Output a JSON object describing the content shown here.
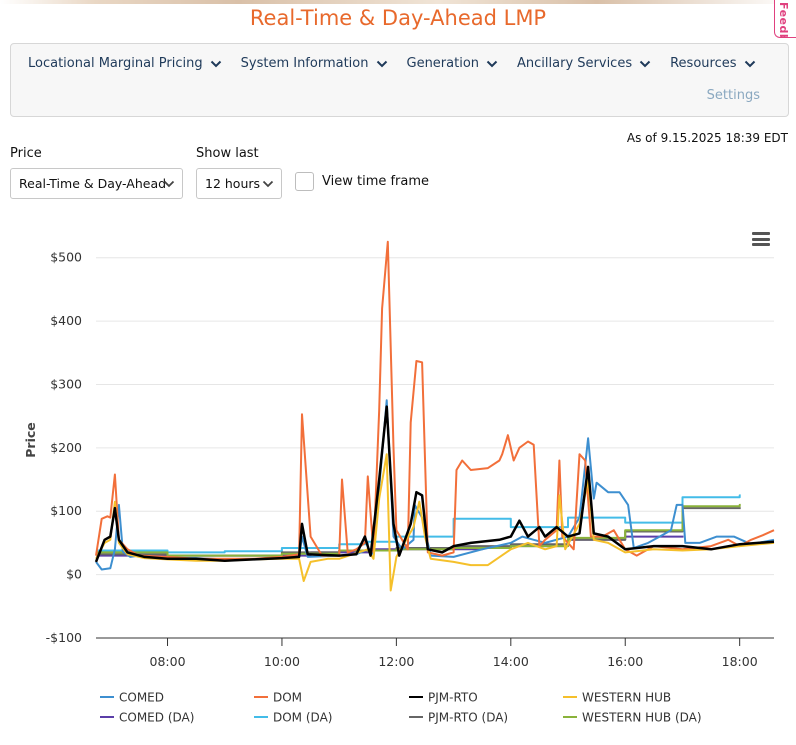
{
  "title": "Real-Time & Day-Ahead LMP",
  "feedback_label": "Feedback",
  "nav": {
    "items": [
      {
        "label": "Locational Marginal Pricing"
      },
      {
        "label": "System Information"
      },
      {
        "label": "Generation"
      },
      {
        "label": "Ancillary Services"
      },
      {
        "label": "Resources"
      }
    ],
    "settings_label": "Settings"
  },
  "as_of": "As of 9.15.2025 18:39 EDT",
  "controls": {
    "price_label": "Price",
    "price_value": "Real-Time & Day-Ahead",
    "show_last_label": "Show last",
    "show_last_value": "12 hours",
    "time_frame_label": "View time frame"
  },
  "colors": {
    "accent": "#e8692c",
    "COMED": "#3d8fd0",
    "DOM": "#f26f3a",
    "PJM-RTO": "#000000",
    "WESTERN HUB": "#f5c02b",
    "COMED (DA)": "#5b3ea8",
    "DOM (DA)": "#43bce8",
    "PJM-RTO (DA)": "#666666",
    "WESTERN HUB (DA)": "#8ab23a"
  },
  "chart_data": {
    "type": "line",
    "title": "",
    "xlabel": "",
    "ylabel": "Price",
    "x_range_hours": [
      6.75,
      18.6
    ],
    "ylim": [
      -100,
      550
    ],
    "y_ticks": [
      -100,
      0,
      100,
      200,
      300,
      400,
      500
    ],
    "y_tick_labels": [
      "-$100",
      "$0",
      "$100",
      "$200",
      "$300",
      "$400",
      "$500"
    ],
    "x_ticks": [
      8,
      10,
      12,
      14,
      16,
      18
    ],
    "x_tick_labels": [
      "08:00",
      "10:00",
      "12:00",
      "14:00",
      "16:00",
      "18:00"
    ],
    "grid": true,
    "legend_position": "bottom",
    "series": [
      {
        "name": "COMED",
        "color": "#3d8fd0",
        "width": 2,
        "points": [
          [
            6.75,
            20
          ],
          [
            6.85,
            8
          ],
          [
            7.0,
            10
          ],
          [
            7.08,
            40
          ],
          [
            7.15,
            110
          ],
          [
            7.22,
            36
          ],
          [
            7.35,
            28
          ],
          [
            7.5,
            30
          ],
          [
            7.7,
            26
          ],
          [
            8.0,
            26
          ],
          [
            8.5,
            26
          ],
          [
            9.0,
            24
          ],
          [
            9.5,
            24
          ],
          [
            10.0,
            26
          ],
          [
            10.3,
            28
          ],
          [
            10.35,
            60
          ],
          [
            10.45,
            28
          ],
          [
            11.0,
            30
          ],
          [
            11.3,
            32
          ],
          [
            11.5,
            40
          ],
          [
            11.6,
            32
          ],
          [
            11.83,
            275
          ],
          [
            11.95,
            60
          ],
          [
            12.1,
            40
          ],
          [
            12.3,
            55
          ],
          [
            12.32,
            110
          ],
          [
            12.45,
            90
          ],
          [
            12.6,
            30
          ],
          [
            13.0,
            28
          ],
          [
            13.5,
            40
          ],
          [
            14.0,
            50
          ],
          [
            14.2,
            60
          ],
          [
            14.4,
            55
          ],
          [
            14.6,
            50
          ],
          [
            15.0,
            60
          ],
          [
            15.2,
            90
          ],
          [
            15.35,
            215
          ],
          [
            15.45,
            120
          ],
          [
            15.5,
            145
          ],
          [
            15.7,
            130
          ],
          [
            15.9,
            130
          ],
          [
            16.05,
            110
          ],
          [
            16.15,
            42
          ],
          [
            16.4,
            50
          ],
          [
            16.6,
            60
          ],
          [
            16.8,
            70
          ],
          [
            16.9,
            110
          ],
          [
            17.0,
            110
          ],
          [
            17.05,
            50
          ],
          [
            17.3,
            50
          ],
          [
            17.6,
            60
          ],
          [
            17.9,
            60
          ],
          [
            18.2,
            48
          ],
          [
            18.6,
            55
          ]
        ]
      },
      {
        "name": "DOM",
        "color": "#f26f3a",
        "width": 2,
        "points": [
          [
            6.75,
            30
          ],
          [
            6.85,
            88
          ],
          [
            6.95,
            92
          ],
          [
            7.0,
            90
          ],
          [
            7.08,
            158
          ],
          [
            7.15,
            55
          ],
          [
            7.3,
            40
          ],
          [
            7.5,
            30
          ],
          [
            8.0,
            28
          ],
          [
            8.5,
            25
          ],
          [
            9.0,
            25
          ],
          [
            9.5,
            25
          ],
          [
            10.0,
            28
          ],
          [
            10.3,
            32
          ],
          [
            10.35,
            253
          ],
          [
            10.5,
            60
          ],
          [
            10.7,
            30
          ],
          [
            11.0,
            30
          ],
          [
            11.05,
            150
          ],
          [
            11.15,
            35
          ],
          [
            11.3,
            40
          ],
          [
            11.45,
            50
          ],
          [
            11.5,
            155
          ],
          [
            11.6,
            35
          ],
          [
            11.7,
            260
          ],
          [
            11.75,
            420
          ],
          [
            11.85,
            525
          ],
          [
            11.95,
            200
          ],
          [
            12.0,
            70
          ],
          [
            12.2,
            40
          ],
          [
            12.25,
            240
          ],
          [
            12.35,
            337
          ],
          [
            12.45,
            335
          ],
          [
            12.55,
            35
          ],
          [
            12.8,
            30
          ],
          [
            13.0,
            35
          ],
          [
            13.05,
            165
          ],
          [
            13.15,
            180
          ],
          [
            13.3,
            165
          ],
          [
            13.6,
            168
          ],
          [
            13.8,
            180
          ],
          [
            13.85,
            190
          ],
          [
            13.95,
            220
          ],
          [
            14.05,
            180
          ],
          [
            14.15,
            200
          ],
          [
            14.3,
            210
          ],
          [
            14.4,
            205
          ],
          [
            14.5,
            45
          ],
          [
            14.6,
            55
          ],
          [
            14.8,
            70
          ],
          [
            14.85,
            180
          ],
          [
            14.9,
            60
          ],
          [
            15.0,
            50
          ],
          [
            15.1,
            40
          ],
          [
            15.2,
            190
          ],
          [
            15.3,
            180
          ],
          [
            15.4,
            60
          ],
          [
            15.6,
            60
          ],
          [
            15.8,
            70
          ],
          [
            16.0,
            40
          ],
          [
            16.2,
            30
          ],
          [
            16.5,
            45
          ],
          [
            17.0,
            40
          ],
          [
            17.5,
            45
          ],
          [
            17.8,
            55
          ],
          [
            18.0,
            45
          ],
          [
            18.2,
            55
          ],
          [
            18.4,
            62
          ],
          [
            18.6,
            70
          ]
        ]
      },
      {
        "name": "PJM-RTO",
        "color": "#000000",
        "width": 2.5,
        "points": [
          [
            6.75,
            20
          ],
          [
            6.9,
            55
          ],
          [
            7.0,
            60
          ],
          [
            7.08,
            105
          ],
          [
            7.15,
            55
          ],
          [
            7.3,
            35
          ],
          [
            7.6,
            28
          ],
          [
            8.0,
            25
          ],
          [
            8.5,
            25
          ],
          [
            9.0,
            22
          ],
          [
            9.5,
            24
          ],
          [
            10.0,
            26
          ],
          [
            10.3,
            28
          ],
          [
            10.35,
            80
          ],
          [
            10.45,
            32
          ],
          [
            11.0,
            30
          ],
          [
            11.3,
            32
          ],
          [
            11.45,
            60
          ],
          [
            11.55,
            30
          ],
          [
            11.7,
            150
          ],
          [
            11.83,
            265
          ],
          [
            11.95,
            80
          ],
          [
            12.05,
            30
          ],
          [
            12.25,
            80
          ],
          [
            12.35,
            130
          ],
          [
            12.45,
            125
          ],
          [
            12.55,
            40
          ],
          [
            12.8,
            35
          ],
          [
            13.0,
            45
          ],
          [
            13.3,
            50
          ],
          [
            13.8,
            55
          ],
          [
            14.0,
            60
          ],
          [
            14.15,
            85
          ],
          [
            14.3,
            60
          ],
          [
            14.5,
            75
          ],
          [
            14.6,
            60
          ],
          [
            14.8,
            75
          ],
          [
            15.0,
            60
          ],
          [
            15.2,
            65
          ],
          [
            15.35,
            170
          ],
          [
            15.45,
            65
          ],
          [
            15.7,
            60
          ],
          [
            16.0,
            40
          ],
          [
            16.5,
            45
          ],
          [
            17.0,
            45
          ],
          [
            17.5,
            40
          ],
          [
            18.0,
            48
          ],
          [
            18.6,
            52
          ]
        ]
      },
      {
        "name": "WESTERN HUB",
        "color": "#f5c02b",
        "width": 2,
        "points": [
          [
            6.75,
            25
          ],
          [
            6.9,
            50
          ],
          [
            7.0,
            55
          ],
          [
            7.08,
            115
          ],
          [
            7.15,
            50
          ],
          [
            7.3,
            32
          ],
          [
            7.6,
            26
          ],
          [
            8.0,
            24
          ],
          [
            8.5,
            22
          ],
          [
            9.0,
            22
          ],
          [
            9.5,
            24
          ],
          [
            10.0,
            25
          ],
          [
            10.3,
            25
          ],
          [
            10.38,
            -10
          ],
          [
            10.5,
            20
          ],
          [
            10.8,
            25
          ],
          [
            11.0,
            25
          ],
          [
            11.5,
            40
          ],
          [
            11.6,
            25
          ],
          [
            11.7,
            120
          ],
          [
            11.83,
            190
          ],
          [
            11.9,
            -25
          ],
          [
            12.0,
            28
          ],
          [
            12.3,
            75
          ],
          [
            12.4,
            115
          ],
          [
            12.5,
            60
          ],
          [
            12.6,
            25
          ],
          [
            13.0,
            20
          ],
          [
            13.3,
            15
          ],
          [
            13.6,
            15
          ],
          [
            14.0,
            40
          ],
          [
            14.3,
            50
          ],
          [
            14.6,
            40
          ],
          [
            14.8,
            45
          ],
          [
            14.85,
            125
          ],
          [
            14.95,
            40
          ],
          [
            15.2,
            80
          ],
          [
            15.35,
            150
          ],
          [
            15.45,
            55
          ],
          [
            15.7,
            50
          ],
          [
            16.0,
            35
          ],
          [
            16.5,
            40
          ],
          [
            17.0,
            38
          ],
          [
            17.5,
            40
          ],
          [
            18.0,
            45
          ],
          [
            18.6,
            50
          ]
        ]
      },
      {
        "name": "COMED (DA)",
        "color": "#5b3ea8",
        "width": 2,
        "step": true,
        "points": [
          [
            6.75,
            30
          ],
          [
            7.0,
            30
          ],
          [
            8.0,
            30
          ],
          [
            8.5,
            30
          ],
          [
            9.0,
            30
          ],
          [
            9.5,
            30
          ],
          [
            10.0,
            30
          ],
          [
            10.5,
            35
          ],
          [
            11.0,
            35
          ],
          [
            11.5,
            40
          ],
          [
            12.0,
            40
          ],
          [
            13.0,
            40
          ],
          [
            13.5,
            42
          ],
          [
            14.0,
            45
          ],
          [
            15.0,
            55
          ],
          [
            16.0,
            60
          ],
          [
            17.0,
            60
          ]
        ]
      },
      {
        "name": "DOM (DA)",
        "color": "#43bce8",
        "width": 2,
        "step": true,
        "points": [
          [
            6.75,
            38
          ],
          [
            7.0,
            38
          ],
          [
            8.0,
            35
          ],
          [
            9.0,
            37
          ],
          [
            10.0,
            42
          ],
          [
            11.0,
            48
          ],
          [
            11.5,
            52
          ],
          [
            12.0,
            60
          ],
          [
            13.0,
            88
          ],
          [
            14.0,
            75
          ],
          [
            15.0,
            90
          ],
          [
            16.0,
            82
          ],
          [
            17.0,
            122
          ],
          [
            18.0,
            125
          ]
        ]
      },
      {
        "name": "PJM-RTO (DA)",
        "color": "#666666",
        "width": 2,
        "step": true,
        "points": [
          [
            6.75,
            32
          ],
          [
            7.0,
            32
          ],
          [
            8.0,
            30
          ],
          [
            9.0,
            30
          ],
          [
            10.0,
            35
          ],
          [
            11.0,
            38
          ],
          [
            12.0,
            42
          ],
          [
            13.0,
            45
          ],
          [
            14.0,
            48
          ],
          [
            15.0,
            55
          ],
          [
            16.0,
            68
          ],
          [
            17.0,
            105
          ],
          [
            18.0,
            105
          ]
        ]
      },
      {
        "name": "WESTERN HUB (DA)",
        "color": "#8ab23a",
        "width": 2,
        "step": true,
        "points": [
          [
            6.75,
            35
          ],
          [
            7.0,
            35
          ],
          [
            8.0,
            30
          ],
          [
            9.0,
            30
          ],
          [
            10.0,
            33
          ],
          [
            11.0,
            38
          ],
          [
            12.0,
            40
          ],
          [
            13.0,
            42
          ],
          [
            14.0,
            45
          ],
          [
            15.0,
            58
          ],
          [
            16.0,
            70
          ],
          [
            17.0,
            108
          ],
          [
            18.0,
            110
          ]
        ]
      }
    ]
  }
}
